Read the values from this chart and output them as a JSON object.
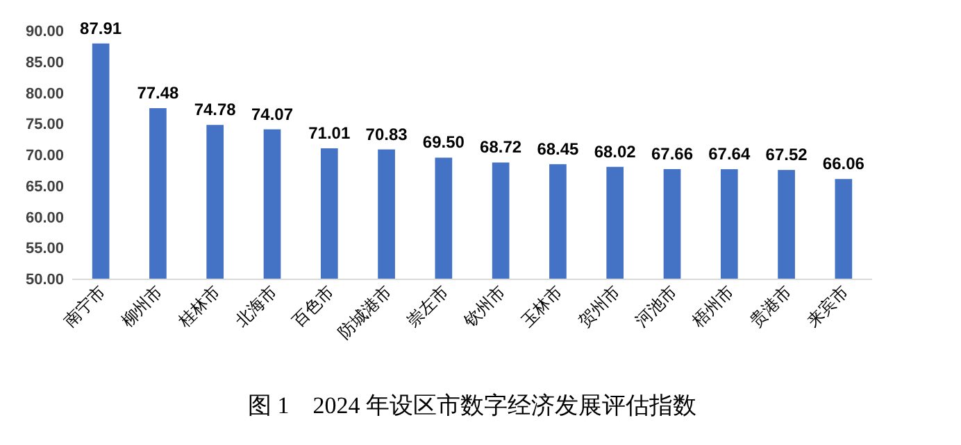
{
  "chart_data": {
    "type": "bar",
    "title": "图 1　2024 年设区市数字经济发展评估指数",
    "categories": [
      "南宁市",
      "柳州市",
      "桂林市",
      "北海市",
      "百色市",
      "防城港市",
      "崇左市",
      "钦州市",
      "玉林市",
      "贺州市",
      "河池市",
      "梧州市",
      "贵港市",
      "来宾市"
    ],
    "values": [
      87.91,
      77.48,
      74.78,
      74.07,
      71.01,
      70.83,
      69.5,
      68.72,
      68.45,
      68.02,
      67.66,
      67.64,
      67.52,
      66.06
    ],
    "value_labels": [
      "87.91",
      "77.48",
      "74.78",
      "74.07",
      "71.01",
      "70.83",
      "69.50",
      "68.72",
      "68.45",
      "68.02",
      "67.66",
      "67.64",
      "67.52",
      "66.06"
    ],
    "color": "#4472c4",
    "ylim": [
      50,
      90
    ],
    "yticks": [
      {
        "value": 50,
        "label": "50.00"
      },
      {
        "value": 55,
        "label": "55.00"
      },
      {
        "value": 60,
        "label": "60.00"
      },
      {
        "value": 65,
        "label": "65.00"
      },
      {
        "value": 70,
        "label": "70.00"
      },
      {
        "value": 75,
        "label": "75.00"
      },
      {
        "value": 80,
        "label": "80.00"
      },
      {
        "value": 85,
        "label": "85.00"
      },
      {
        "value": 90,
        "label": "90.00"
      }
    ]
  }
}
